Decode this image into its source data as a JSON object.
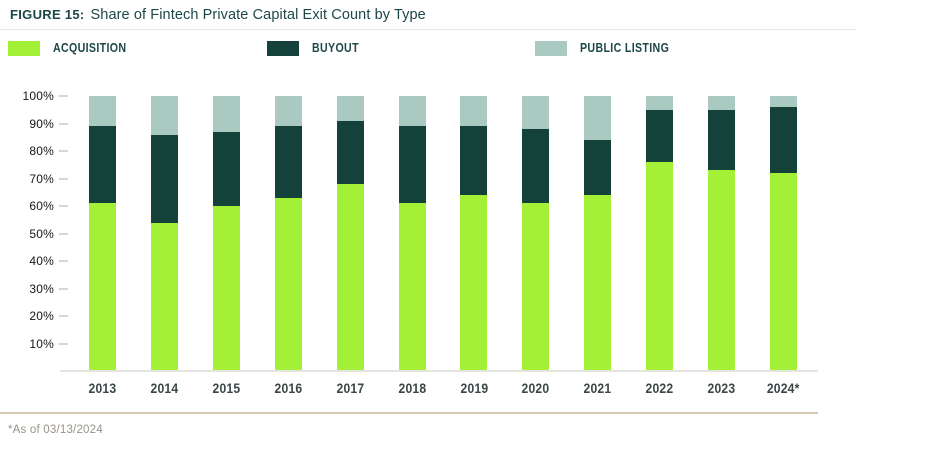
{
  "header": {
    "figure_label": "FIGURE 15:",
    "title": "Share of Fintech Private Capital Exit Count by Type"
  },
  "legend": [
    {
      "label": "ACQUISITION",
      "color": "#a4f037"
    },
    {
      "label": "BUYOUT",
      "color": "#15413b"
    },
    {
      "label": "PUBLIC LISTING",
      "color": "#aac9c1"
    }
  ],
  "footnote": "*As of 03/13/2024",
  "chart_data": {
    "type": "bar",
    "stacked": true,
    "unit": "%",
    "title": "Share of Fintech Private Capital Exit Count by Type",
    "categories": [
      "2013",
      "2014",
      "2015",
      "2016",
      "2017",
      "2018",
      "2019",
      "2020",
      "2021",
      "2022",
      "2023",
      "2024*"
    ],
    "series": [
      {
        "name": "Acquisition",
        "color": "#a4f037",
        "values": [
          61,
          54,
          60,
          63,
          68,
          61,
          64,
          61,
          64,
          76,
          73,
          72
        ]
      },
      {
        "name": "Buyout",
        "color": "#15413b",
        "values": [
          28,
          32,
          27,
          26,
          23,
          28,
          25,
          27,
          20,
          19,
          22,
          24
        ]
      },
      {
        "name": "Public Listing",
        "color": "#aac9c1",
        "values": [
          11,
          14,
          13,
          11,
          9,
          11,
          11,
          12,
          16,
          5,
          5,
          4
        ]
      }
    ],
    "xlabel": "",
    "ylabel": "",
    "ylim": [
      0,
      100
    ],
    "ytick_labels": [
      "10%",
      "20%",
      "30%",
      "40%",
      "50%",
      "60%",
      "70%",
      "80%",
      "90%",
      "100%"
    ],
    "grid": false,
    "legend_position": "top"
  }
}
